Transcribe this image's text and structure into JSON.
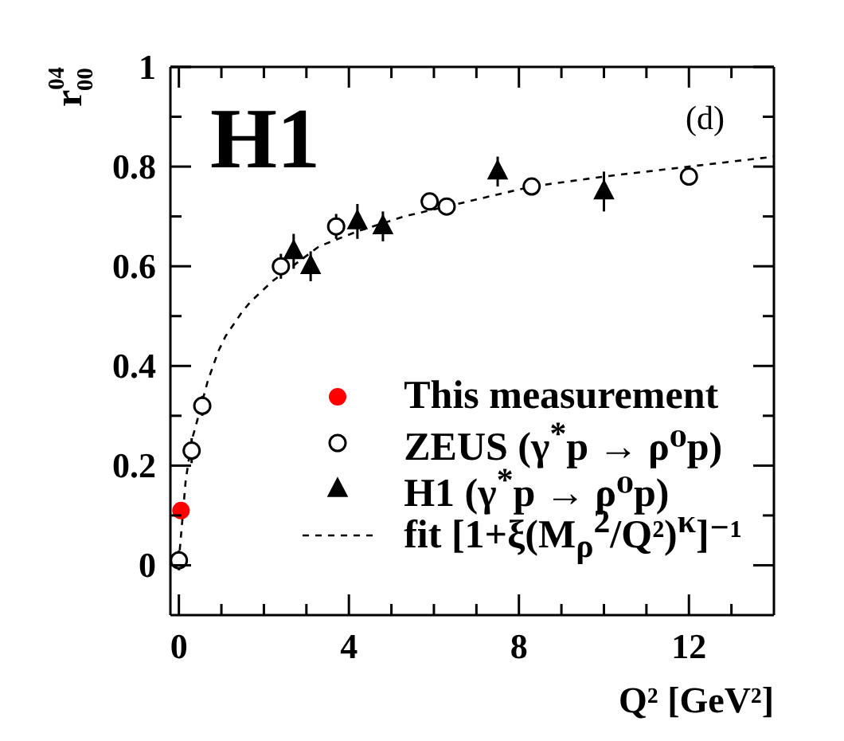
{
  "chart_data": {
    "type": "scatter",
    "xlabel": "Q² [GeV²]",
    "ylabel": "r$^{04}$$_{00}$",
    "annotations": [
      "H1",
      "(d)"
    ],
    "xlim": [
      -0.2,
      14
    ],
    "ylim": [
      -0.1,
      1
    ],
    "xticks": [
      0,
      {
        "value": 1,
        "label": null
      },
      {
        "value": 2,
        "label": null
      },
      {
        "value": 3,
        "label": null
      },
      4,
      {
        "value": 5,
        "label": null
      },
      {
        "value": 6,
        "label": null
      },
      {
        "value": 7,
        "label": null
      },
      8,
      {
        "value": 9,
        "label": null
      },
      {
        "value": 10,
        "label": null
      },
      {
        "value": 11,
        "label": null
      },
      12,
      {
        "value": 13,
        "label": null
      }
    ],
    "yticks": [
      0,
      {
        "value": 0.1,
        "label": null
      },
      0.2,
      {
        "value": 0.3,
        "label": null
      },
      0.4,
      {
        "value": 0.5,
        "label": null
      },
      0.6,
      {
        "value": 0.7,
        "label": null
      },
      0.8,
      {
        "value": 0.9,
        "label": null
      },
      1
    ],
    "legend": "bottom right",
    "series": [
      {
        "name": "This measurement",
        "color": "#ff0000",
        "marker": "circle",
        "x": [
          0.05
        ],
        "values": [
          0.11
        ]
      },
      {
        "name": "ZEUS (γ$^{*}$p → ρ⁰p)",
        "color": "#ffffff",
        "marker": "circle",
        "x": [
          0,
          0.3,
          0.55,
          2.4,
          3.7,
          5.9,
          6.3,
          8.3,
          12
        ],
        "values": [
          0.01,
          0.23,
          0.32,
          0.6,
          0.68,
          0.73,
          0.72,
          0.76,
          0.78
        ],
        "errors": [
          0.02,
          0.025,
          0.02,
          0.025,
          0.025,
          null,
          null,
          null,
          null
        ]
      },
      {
        "name": "H1 (γ$^{*}$p → ρ⁰p)",
        "color": "#000000",
        "marker": "triangle",
        "x": [
          2.7,
          3.1,
          4.2,
          4.8,
          7.5,
          10
        ],
        "values": [
          0.63,
          0.6,
          0.69,
          0.68,
          0.79,
          0.75
        ],
        "errors": [
          0.035,
          0.03,
          0.035,
          0.03,
          0.03,
          0.04
        ]
      },
      {
        "name": "fit [1+ξ(M$_{ρ}$$^{2}$/Q²)$^{κ}$]⁻¹",
        "type": "line",
        "color": "#000000",
        "line_style": "dashed",
        "marker": "none",
        "x": [
          0.02,
          0.06,
          0.16,
          0.3,
          0.43,
          0.68,
          0.93,
          1.1,
          1.5,
          1.7,
          2.2,
          3.3,
          4.2,
          5.3,
          6.8,
          8.3,
          10,
          12,
          14
        ],
        "values": [
          0.03,
          0.07,
          0.17,
          0.25,
          0.29,
          0.37,
          0.43,
          0.46,
          0.51,
          0.53,
          0.57,
          0.64,
          0.67,
          0.7,
          0.73,
          0.76,
          0.78,
          0.8,
          0.82
        ]
      }
    ]
  }
}
